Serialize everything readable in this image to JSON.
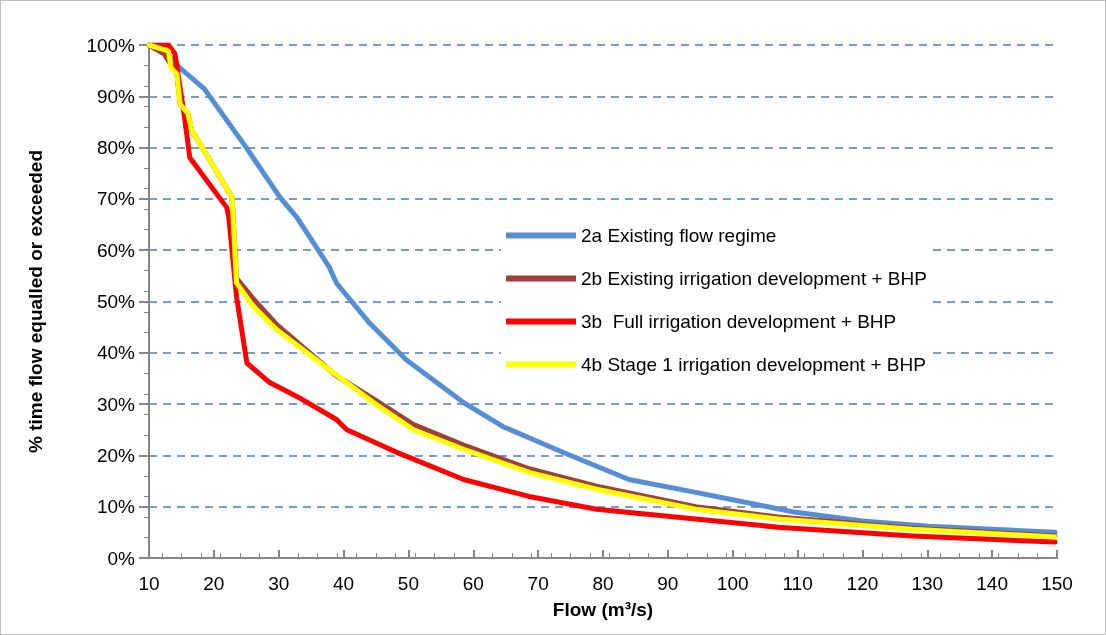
{
  "chart_data": {
    "type": "line",
    "xlabel": "Flow (m³/s)",
    "ylabel": "% time flow equalled or exceeded",
    "xlim": [
      10,
      150
    ],
    "xticks": [
      10,
      20,
      30,
      40,
      50,
      60,
      70,
      80,
      90,
      100,
      110,
      120,
      130,
      140,
      150
    ],
    "ylim": [
      0,
      100
    ],
    "yticks": [
      {
        "value": 0,
        "label": "0%"
      },
      {
        "value": 10,
        "label": "10%"
      },
      {
        "value": 20,
        "label": "20%"
      },
      {
        "value": 30,
        "label": "30%"
      },
      {
        "value": 40,
        "label": "40%"
      },
      {
        "value": 50,
        "label": "50%"
      },
      {
        "value": 60,
        "label": "60%"
      },
      {
        "value": 70,
        "label": "70%"
      },
      {
        "value": 80,
        "label": "80%"
      },
      {
        "value": 90,
        "label": "90%"
      },
      {
        "value": 100,
        "label": "100%"
      }
    ],
    "grid": "y",
    "legend": "right",
    "marker": "none",
    "line_style": "solid",
    "series": [
      {
        "name": "2a Existing flow regime",
        "color": "#558ed5",
        "x": [
          10,
          13,
          14.8,
          18.5,
          25,
          30.2,
          32.8,
          37.8,
          38.9,
          44,
          49.7,
          58.5,
          64.6,
          73.8,
          84,
          94.3,
          99.4,
          109.7,
          120,
          130.2,
          149.7
        ],
        "values": [
          100,
          98,
          95.5,
          91.5,
          80,
          70.3,
          66.4,
          56.7,
          53.6,
          45.8,
          38.6,
          30.3,
          25.6,
          20.6,
          15.3,
          12.8,
          11.5,
          8.9,
          7.2,
          6.2,
          5
        ]
      },
      {
        "name": "2b Existing irrigation development + BHP",
        "color": "#a0403c",
        "x": [
          10,
          12.3,
          14.3,
          14.8,
          16,
          16.6,
          18.5,
          22.8,
          23.5,
          26.1,
          29.7,
          38.9,
          44.6,
          50.8,
          58.5,
          68.6,
          79,
          94.3,
          107,
          127.7,
          149.7
        ],
        "values": [
          100,
          98.3,
          94.4,
          88.5,
          86.6,
          83.3,
          79.4,
          70.3,
          54.5,
          50.5,
          45.5,
          35.5,
          31,
          26,
          22,
          17.4,
          14,
          10,
          8,
          5.8,
          4.3
        ]
      },
      {
        "name": "3b  Full irrigation development + BHP",
        "color": "#ff0000",
        "x": [
          10,
          13,
          14,
          15.4,
          16.3,
          22,
          22.3,
          23.5,
          25.1,
          28.6,
          32.8,
          38.9,
          40.5,
          48.2,
          58.5,
          68.6,
          79,
          94.3,
          107,
          127.7,
          149.7
        ],
        "values": [
          100,
          100,
          98.3,
          86.6,
          78,
          68.3,
          66.4,
          50.9,
          38,
          34.2,
          31.5,
          27,
          25,
          20.6,
          15.3,
          12,
          9.5,
          7.6,
          6,
          4.3,
          3.1
        ]
      },
      {
        "name": "4b Stage 1 irrigation development + BHP",
        "color": "#ffff00",
        "x": [
          10,
          13,
          13.4,
          14.3,
          14.8,
          16,
          16.6,
          18.5,
          22.8,
          23.5,
          26.1,
          29.7,
          37.8,
          44.6,
          50.8,
          58.5,
          68.6,
          79,
          94.3,
          107,
          127.7,
          149.7
        ],
        "values": [
          100,
          98.8,
          95.5,
          94.4,
          88.5,
          86.6,
          83.3,
          79.4,
          70.3,
          53.6,
          49,
          44.5,
          36.7,
          30.3,
          25,
          21.2,
          16.7,
          13.4,
          9.5,
          7.6,
          5.6,
          4.1
        ]
      }
    ]
  }
}
